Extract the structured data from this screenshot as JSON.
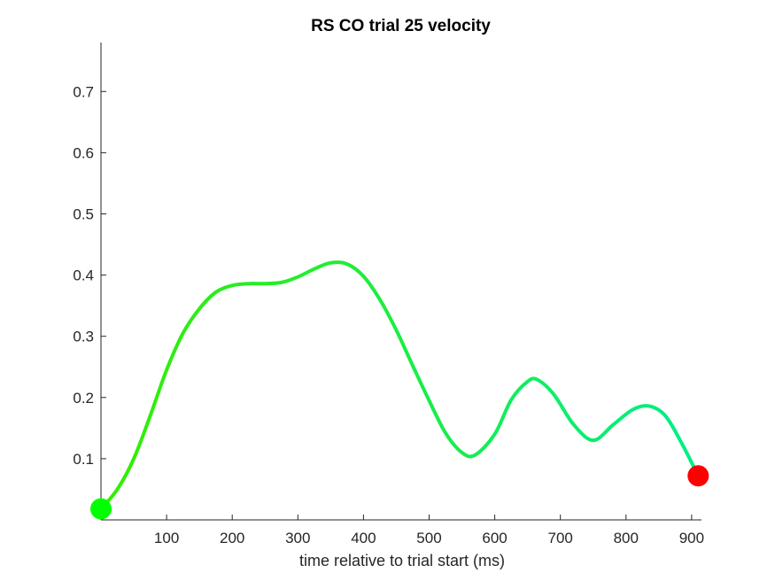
{
  "chart_data": {
    "type": "line",
    "title": "RS  CO trial 25 velocity",
    "xlabel": "time relative to trial start (ms)",
    "ylabel": "",
    "xlim": [
      0,
      915
    ],
    "ylim": [
      0,
      0.78
    ],
    "x_ticks": [
      100,
      200,
      300,
      400,
      500,
      600,
      700,
      800,
      900
    ],
    "x_tick_labels": [
      "100",
      "200",
      "300",
      "400",
      "500",
      "600",
      "700",
      "800",
      "900"
    ],
    "y_ticks": [
      0.1,
      0.2,
      0.3,
      0.4,
      0.5,
      0.6,
      0.7
    ],
    "y_tick_labels": [
      "0.1",
      "0.2",
      "0.3",
      "0.4",
      "0.5",
      "0.6",
      "0.7"
    ],
    "grid": false,
    "series": [
      {
        "x": [
          0,
          25,
          50,
          75,
          100,
          125,
          150,
          175,
          200,
          225,
          250,
          275,
          300,
          325,
          350,
          375,
          400,
          425,
          450,
          475,
          500,
          525,
          550,
          570,
          600,
          625,
          650,
          665,
          690,
          720,
          750,
          780,
          810,
          835,
          860,
          885,
          910
        ],
        "y": [
          0.018,
          0.05,
          0.1,
          0.17,
          0.245,
          0.305,
          0.345,
          0.372,
          0.383,
          0.386,
          0.386,
          0.388,
          0.397,
          0.41,
          0.42,
          0.418,
          0.398,
          0.36,
          0.31,
          0.252,
          0.195,
          0.142,
          0.11,
          0.106,
          0.14,
          0.196,
          0.226,
          0.229,
          0.205,
          0.156,
          0.13,
          0.155,
          0.18,
          0.186,
          0.17,
          0.125,
          0.072
        ],
        "color_start": "#33ee00",
        "color_end": "#00ee88"
      }
    ],
    "markers": [
      {
        "x": 0,
        "y": 0.018,
        "color": "#00ff00"
      },
      {
        "x": 910,
        "y": 0.072,
        "color": "#ff0000"
      }
    ]
  }
}
